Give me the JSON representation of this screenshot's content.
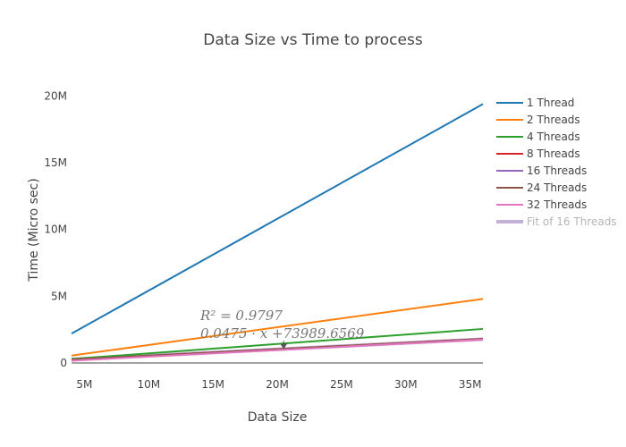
{
  "chart_data": {
    "type": "line",
    "title": "Data Size vs Time to process",
    "xlabel": "Data Size",
    "ylabel": "Time (Micro sec)",
    "xlim": [
      4000000,
      36000000
    ],
    "ylim": [
      0,
      20500000
    ],
    "x_ticks": [
      {
        "value": 5000000,
        "label": "5M"
      },
      {
        "value": 10000000,
        "label": "10M"
      },
      {
        "value": 15000000,
        "label": "15M"
      },
      {
        "value": 20000000,
        "label": "20M"
      },
      {
        "value": 25000000,
        "label": "25M"
      },
      {
        "value": 30000000,
        "label": "30M"
      },
      {
        "value": 35000000,
        "label": "35M"
      }
    ],
    "y_ticks": [
      {
        "value": 0,
        "label": "0"
      },
      {
        "value": 5000000,
        "label": "5M"
      },
      {
        "value": 10000000,
        "label": "10M"
      },
      {
        "value": 15000000,
        "label": "15M"
      },
      {
        "value": 20000000,
        "label": "20M"
      }
    ],
    "grid": false,
    "legend_position": "right",
    "series": [
      {
        "name": "1 Thread",
        "color": "#1f77b4",
        "x": [
          4000000,
          36000000
        ],
        "values": [
          2200000,
          19400000
        ]
      },
      {
        "name": "2 Threads",
        "color": "#ff7f0e",
        "x": [
          4000000,
          36000000
        ],
        "values": [
          550000,
          4800000
        ]
      },
      {
        "name": "4 Threads",
        "color": "#2ca02c",
        "x": [
          4000000,
          36000000
        ],
        "values": [
          300000,
          2550000
        ]
      },
      {
        "name": "8 Threads",
        "color": "#d62728",
        "x": [
          4000000,
          36000000
        ],
        "values": [
          260000,
          1800000
        ]
      },
      {
        "name": "16 Threads",
        "color": "#9467bd",
        "x": [
          4000000,
          36000000
        ],
        "values": [
          250000,
          1780000
        ]
      },
      {
        "name": "24 Threads",
        "color": "#8c564b",
        "x": [
          4000000,
          36000000
        ],
        "values": [
          260000,
          1800000
        ]
      },
      {
        "name": "32 Threads",
        "color": "#e377c2",
        "x": [
          4000000,
          36000000
        ],
        "values": [
          170000,
          1750000
        ]
      },
      {
        "name": "Fit of 16 Threads",
        "color": "#c5b0d5",
        "x": [
          4000000,
          36000000
        ],
        "values": [
          264000,
          1784000
        ],
        "muted": true
      }
    ],
    "annotation": {
      "line1": "R² = 0.9797",
      "line2": "0.0475 · x +73989.6569",
      "arrow_to": {
        "x": 20500000,
        "y": 1050000
      }
    }
  }
}
